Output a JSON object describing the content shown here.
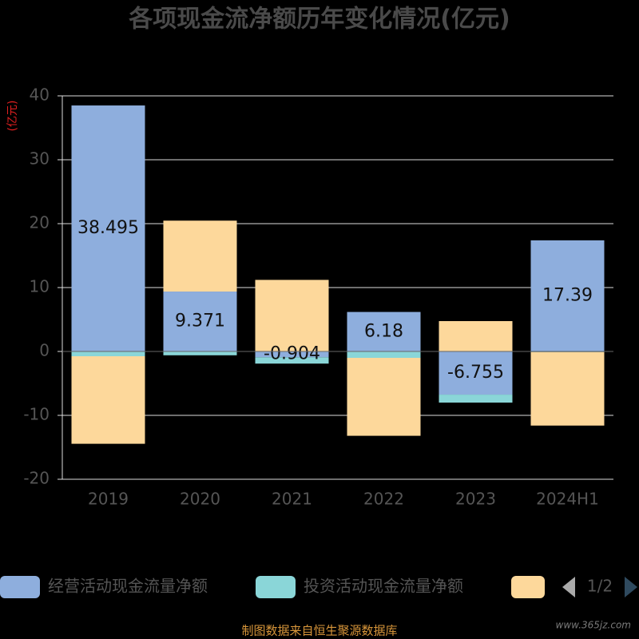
{
  "chart_data": {
    "type": "bar",
    "stacked": true,
    "title": "各项现金流净额历年变化情况(亿元)",
    "y_label": "(亿元)",
    "categories": [
      "2019",
      "2020",
      "2021",
      "2022",
      "2023",
      "2024H1"
    ],
    "series": [
      {
        "name": "经营活动现金流量净额",
        "color": "#8eaedd",
        "values": [
          38.495,
          9.371,
          -0.904,
          6.18,
          -6.755,
          17.39
        ],
        "show_labels": true
      },
      {
        "name": "投资活动现金流量净额",
        "color": "#8ad6d8",
        "values": [
          -0.75,
          -0.6,
          -1.0,
          -1.0,
          -1.25,
          -0.1
        ]
      },
      {
        "color": "#fdd89b",
        "values": [
          -13.7,
          11.1,
          11.2,
          -12.2,
          4.75,
          -11.5
        ]
      }
    ],
    "ylim": [
      -20,
      40
    ],
    "yticks": [
      -20,
      -10,
      0,
      10,
      20,
      30,
      40
    ],
    "grid": true,
    "legend_page": "1/2",
    "source": "制图数据来自恒生聚源数据库",
    "watermark": "www.365jz.com"
  }
}
